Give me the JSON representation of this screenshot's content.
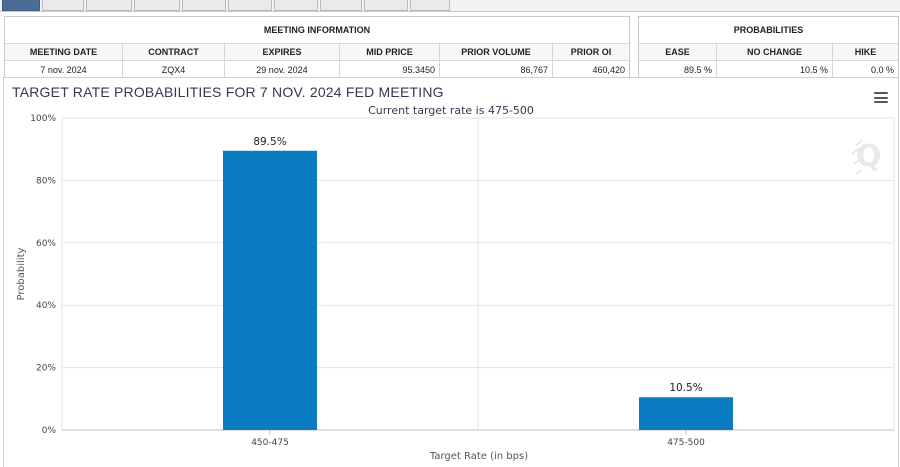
{
  "meeting_info": {
    "header": "MEETING INFORMATION",
    "columns": [
      "MEETING DATE",
      "CONTRACT",
      "EXPIRES",
      "MID PRICE",
      "PRIOR VOLUME",
      "PRIOR OI"
    ],
    "row": [
      "7 nov. 2024",
      "ZQX4",
      "29 nov. 2024",
      "95.3450",
      "86,767",
      "460,420"
    ]
  },
  "probabilities": {
    "header": "PROBABILITIES",
    "columns": [
      "EASE",
      "NO CHANGE",
      "HIKE"
    ],
    "row": [
      "89.5 %",
      "10.5 %",
      "0.0 %"
    ]
  },
  "chart_title": "TARGET RATE PROBABILITIES FOR 7 NOV. 2024 FED MEETING",
  "colors": {
    "bar": "#0a7cc1",
    "grid": "#e3e3e3",
    "title": "#333a50"
  },
  "chart_data": {
    "type": "bar",
    "title": "TARGET RATE PROBABILITIES FOR 7 NOV. 2024 FED MEETING",
    "subtitle": "Current target rate is 475-500",
    "categories": [
      "450-475",
      "475-500"
    ],
    "values": [
      89.5,
      10.5
    ],
    "data_labels": [
      "89.5%",
      "10.5%"
    ],
    "xlabel": "Target Rate (in bps)",
    "ylabel": "Probability",
    "ylim": [
      0,
      100
    ],
    "yticks": [
      0,
      20,
      40,
      60,
      80,
      100
    ],
    "ytick_labels": [
      "0%",
      "20%",
      "40%",
      "60%",
      "80%",
      "100%"
    ],
    "grid": true
  }
}
